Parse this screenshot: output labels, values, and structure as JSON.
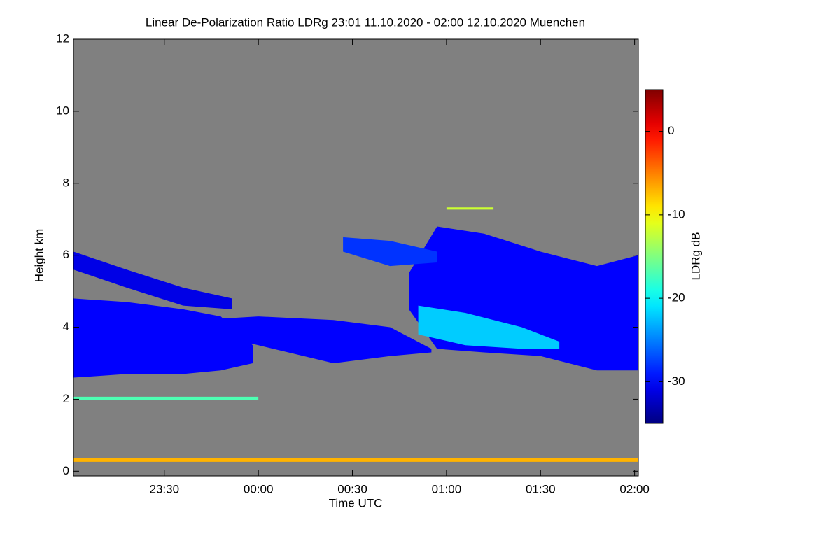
{
  "chart_data": {
    "type": "heatmap",
    "title": "Linear De-Polarization Ratio LDRg   23:01 11.10.2020 - 02:00 12.10.2020 Muenchen",
    "xlabel": "Time UTC",
    "ylabel": "Height km",
    "colorbar_label": "LDRg dB",
    "xlim": [
      23.017,
      26.02
    ],
    "ylim": [
      -0.13,
      12.0
    ],
    "xticks": [
      {
        "value": 23.5,
        "label": "23:30"
      },
      {
        "value": 24.0,
        "label": "00:00"
      },
      {
        "value": 24.5,
        "label": "00:30"
      },
      {
        "value": 25.0,
        "label": "01:00"
      },
      {
        "value": 25.5,
        "label": "01:30"
      },
      {
        "value": 26.0,
        "label": "02:00"
      }
    ],
    "yticks": [
      0,
      2,
      4,
      6,
      8,
      10,
      12
    ],
    "clim": [
      -35,
      5
    ],
    "cticks": [
      -30,
      -20,
      -10,
      0
    ],
    "colormap": "jet",
    "background_color": "#808080",
    "layers": [
      {
        "x": [
          23.017,
          23.3,
          23.6,
          23.8,
          23.97
        ],
        "y_top": [
          4.8,
          4.7,
          4.5,
          4.3,
          3.5
        ],
        "y_bottom": [
          2.6,
          2.7,
          2.7,
          2.8,
          3.0
        ],
        "value": -30
      },
      {
        "x": [
          23.017,
          23.3,
          23.6,
          23.86
        ],
        "y_top": [
          6.1,
          5.6,
          5.1,
          4.8
        ],
        "y_bottom": [
          5.6,
          5.1,
          4.6,
          4.5
        ],
        "value": -31
      },
      {
        "x": [
          23.67,
          24.0,
          24.4,
          24.7,
          24.92
        ],
        "y_top": [
          4.2,
          4.3,
          4.2,
          4.0,
          3.4
        ],
        "y_bottom": [
          3.9,
          3.5,
          3.0,
          3.2,
          3.3
        ],
        "value": -30
      },
      {
        "x": [
          24.8,
          24.95,
          25.2,
          25.5,
          25.8,
          26.02
        ],
        "y_top": [
          5.5,
          6.8,
          6.6,
          6.1,
          5.7,
          6.0
        ],
        "y_bottom": [
          4.5,
          3.4,
          3.3,
          3.2,
          2.8,
          2.8
        ],
        "value": -30
      },
      {
        "x": [
          24.85,
          25.1,
          25.4,
          25.6
        ],
        "y_top": [
          4.6,
          4.4,
          4.0,
          3.6
        ],
        "y_bottom": [
          3.8,
          3.5,
          3.4,
          3.4
        ],
        "value": -22
      },
      {
        "x": [
          24.45,
          24.7,
          24.95
        ],
        "y_top": [
          6.5,
          6.4,
          6.1
        ],
        "y_bottom": [
          6.1,
          5.7,
          5.8
        ],
        "value": -28
      },
      {
        "x": [
          23.017,
          26.02
        ],
        "y_top": [
          0.36,
          0.36
        ],
        "y_bottom": [
          0.26,
          0.26
        ],
        "value": -7
      },
      {
        "x": [
          25.0,
          25.25
        ],
        "y_top": [
          7.33,
          7.33
        ],
        "y_bottom": [
          7.27,
          7.27
        ],
        "value": -12
      },
      {
        "x": [
          23.017,
          24.0
        ],
        "y_top": [
          2.07,
          2.07
        ],
        "y_bottom": [
          1.98,
          1.98
        ],
        "value": -17
      }
    ]
  }
}
